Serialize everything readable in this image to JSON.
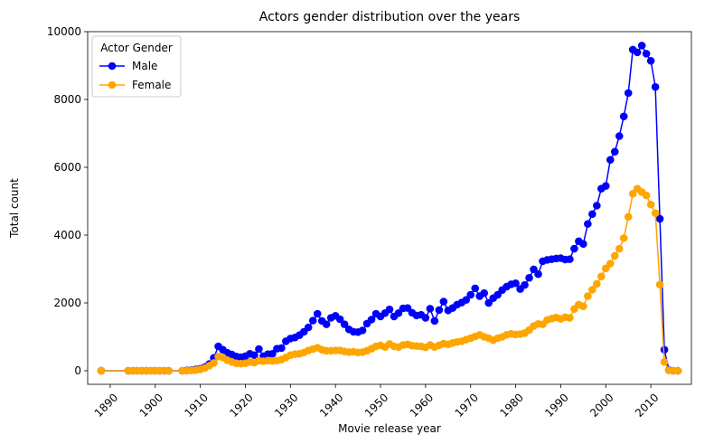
{
  "chart_data": {
    "type": "line",
    "title": "Actors gender distribution over the years",
    "xlabel": "Movie release year",
    "ylabel": "Total count",
    "xlim": [
      1885,
      2019
    ],
    "ylim": [
      -400,
      10000
    ],
    "xticks": [
      1890,
      1900,
      1910,
      1920,
      1930,
      1940,
      1950,
      1960,
      1970,
      1980,
      1990,
      2000,
      2010
    ],
    "xtick_labels": [
      "1890",
      "1900",
      "1910",
      "1920",
      "1930",
      "1940",
      "1950",
      "1960",
      "1970",
      "1980",
      "1990",
      "2000",
      "2010"
    ],
    "yticks": [
      0,
      2000,
      4000,
      6000,
      8000,
      10000
    ],
    "ytick_labels": [
      "0",
      "2000",
      "4000",
      "6000",
      "8000",
      "10000"
    ],
    "grid": false,
    "legend": {
      "title": "Actor Gender",
      "placement": "top-left"
    },
    "series": [
      {
        "name": "Male",
        "color": "#0000ff",
        "points": [
          [
            1888,
            0
          ],
          [
            1894,
            0
          ],
          [
            1895,
            0
          ],
          [
            1896,
            0
          ],
          [
            1897,
            0
          ],
          [
            1898,
            0
          ],
          [
            1899,
            0
          ],
          [
            1900,
            0
          ],
          [
            1901,
            0
          ],
          [
            1902,
            0
          ],
          [
            1903,
            0
          ],
          [
            1906,
            0
          ],
          [
            1907,
            10
          ],
          [
            1908,
            20
          ],
          [
            1909,
            40
          ],
          [
            1910,
            60
          ],
          [
            1911,
            110
          ],
          [
            1912,
            200
          ],
          [
            1913,
            380
          ],
          [
            1914,
            720
          ],
          [
            1915,
            620
          ],
          [
            1916,
            530
          ],
          [
            1917,
            480
          ],
          [
            1918,
            420
          ],
          [
            1919,
            400
          ],
          [
            1920,
            430
          ],
          [
            1921,
            500
          ],
          [
            1922,
            460
          ],
          [
            1923,
            640
          ],
          [
            1924,
            430
          ],
          [
            1925,
            490
          ],
          [
            1926,
            500
          ],
          [
            1927,
            650
          ],
          [
            1928,
            670
          ],
          [
            1929,
            870
          ],
          [
            1930,
            950
          ],
          [
            1931,
            980
          ],
          [
            1932,
            1050
          ],
          [
            1933,
            1150
          ],
          [
            1934,
            1280
          ],
          [
            1935,
            1480
          ],
          [
            1936,
            1680
          ],
          [
            1937,
            1470
          ],
          [
            1938,
            1370
          ],
          [
            1939,
            1560
          ],
          [
            1940,
            1620
          ],
          [
            1941,
            1520
          ],
          [
            1942,
            1370
          ],
          [
            1943,
            1220
          ],
          [
            1944,
            1150
          ],
          [
            1945,
            1140
          ],
          [
            1946,
            1190
          ],
          [
            1947,
            1390
          ],
          [
            1948,
            1510
          ],
          [
            1949,
            1680
          ],
          [
            1950,
            1600
          ],
          [
            1951,
            1700
          ],
          [
            1952,
            1810
          ],
          [
            1953,
            1600
          ],
          [
            1954,
            1700
          ],
          [
            1955,
            1840
          ],
          [
            1956,
            1850
          ],
          [
            1957,
            1710
          ],
          [
            1958,
            1630
          ],
          [
            1959,
            1650
          ],
          [
            1960,
            1560
          ],
          [
            1961,
            1830
          ],
          [
            1962,
            1470
          ],
          [
            1963,
            1790
          ],
          [
            1964,
            2040
          ],
          [
            1965,
            1780
          ],
          [
            1966,
            1850
          ],
          [
            1967,
            1950
          ],
          [
            1968,
            2010
          ],
          [
            1969,
            2090
          ],
          [
            1970,
            2240
          ],
          [
            1971,
            2430
          ],
          [
            1972,
            2200
          ],
          [
            1973,
            2290
          ],
          [
            1974,
            2000
          ],
          [
            1975,
            2140
          ],
          [
            1976,
            2240
          ],
          [
            1977,
            2380
          ],
          [
            1978,
            2480
          ],
          [
            1979,
            2550
          ],
          [
            1980,
            2580
          ],
          [
            1981,
            2410
          ],
          [
            1982,
            2530
          ],
          [
            1983,
            2740
          ],
          [
            1984,
            2990
          ],
          [
            1985,
            2850
          ],
          [
            1986,
            3230
          ],
          [
            1987,
            3270
          ],
          [
            1988,
            3290
          ],
          [
            1989,
            3310
          ],
          [
            1990,
            3320
          ],
          [
            1991,
            3280
          ],
          [
            1992,
            3290
          ],
          [
            1993,
            3600
          ],
          [
            1994,
            3820
          ],
          [
            1995,
            3740
          ],
          [
            1996,
            4330
          ],
          [
            1997,
            4620
          ],
          [
            1998,
            4870
          ],
          [
            1999,
            5370
          ],
          [
            2000,
            5450
          ],
          [
            2001,
            6220
          ],
          [
            2002,
            6460
          ],
          [
            2003,
            6920
          ],
          [
            2004,
            7500
          ],
          [
            2005,
            8190
          ],
          [
            2006,
            9470
          ],
          [
            2007,
            9390
          ],
          [
            2008,
            9590
          ],
          [
            2009,
            9350
          ],
          [
            2010,
            9140
          ],
          [
            2011,
            8370
          ],
          [
            2012,
            4480
          ],
          [
            2013,
            620
          ],
          [
            2014,
            20
          ],
          [
            2015,
            0
          ],
          [
            2016,
            0
          ]
        ]
      },
      {
        "name": "Female",
        "color": "#ffa500",
        "points": [
          [
            1888,
            0
          ],
          [
            1894,
            0
          ],
          [
            1895,
            0
          ],
          [
            1896,
            0
          ],
          [
            1897,
            0
          ],
          [
            1898,
            0
          ],
          [
            1899,
            0
          ],
          [
            1900,
            0
          ],
          [
            1901,
            0
          ],
          [
            1902,
            0
          ],
          [
            1903,
            0
          ],
          [
            1906,
            0
          ],
          [
            1907,
            0
          ],
          [
            1908,
            10
          ],
          [
            1909,
            20
          ],
          [
            1910,
            40
          ],
          [
            1911,
            80
          ],
          [
            1912,
            150
          ],
          [
            1913,
            230
          ],
          [
            1914,
            420
          ],
          [
            1915,
            390
          ],
          [
            1916,
            310
          ],
          [
            1917,
            260
          ],
          [
            1918,
            220
          ],
          [
            1919,
            210
          ],
          [
            1920,
            220
          ],
          [
            1921,
            260
          ],
          [
            1922,
            240
          ],
          [
            1923,
            300
          ],
          [
            1924,
            280
          ],
          [
            1925,
            300
          ],
          [
            1926,
            290
          ],
          [
            1927,
            300
          ],
          [
            1928,
            330
          ],
          [
            1929,
            390
          ],
          [
            1930,
            460
          ],
          [
            1931,
            490
          ],
          [
            1932,
            500
          ],
          [
            1933,
            540
          ],
          [
            1934,
            600
          ],
          [
            1935,
            640
          ],
          [
            1936,
            680
          ],
          [
            1937,
            620
          ],
          [
            1938,
            590
          ],
          [
            1939,
            590
          ],
          [
            1940,
            600
          ],
          [
            1941,
            600
          ],
          [
            1942,
            570
          ],
          [
            1943,
            550
          ],
          [
            1944,
            560
          ],
          [
            1945,
            540
          ],
          [
            1946,
            550
          ],
          [
            1947,
            590
          ],
          [
            1948,
            650
          ],
          [
            1949,
            720
          ],
          [
            1950,
            750
          ],
          [
            1951,
            700
          ],
          [
            1952,
            790
          ],
          [
            1953,
            720
          ],
          [
            1954,
            700
          ],
          [
            1955,
            760
          ],
          [
            1956,
            780
          ],
          [
            1957,
            740
          ],
          [
            1958,
            730
          ],
          [
            1959,
            720
          ],
          [
            1960,
            690
          ],
          [
            1961,
            760
          ],
          [
            1962,
            700
          ],
          [
            1963,
            750
          ],
          [
            1964,
            800
          ],
          [
            1965,
            780
          ],
          [
            1966,
            820
          ],
          [
            1967,
            850
          ],
          [
            1968,
            870
          ],
          [
            1969,
            920
          ],
          [
            1970,
            960
          ],
          [
            1971,
            1010
          ],
          [
            1972,
            1060
          ],
          [
            1973,
            1000
          ],
          [
            1974,
            960
          ],
          [
            1975,
            900
          ],
          [
            1976,
            960
          ],
          [
            1977,
            1000
          ],
          [
            1978,
            1060
          ],
          [
            1979,
            1090
          ],
          [
            1980,
            1070
          ],
          [
            1981,
            1080
          ],
          [
            1982,
            1110
          ],
          [
            1983,
            1200
          ],
          [
            1984,
            1320
          ],
          [
            1985,
            1380
          ],
          [
            1986,
            1370
          ],
          [
            1987,
            1500
          ],
          [
            1988,
            1540
          ],
          [
            1989,
            1570
          ],
          [
            1990,
            1530
          ],
          [
            1991,
            1580
          ],
          [
            1992,
            1560
          ],
          [
            1993,
            1820
          ],
          [
            1994,
            1950
          ],
          [
            1995,
            1900
          ],
          [
            1996,
            2200
          ],
          [
            1997,
            2390
          ],
          [
            1998,
            2560
          ],
          [
            1999,
            2780
          ],
          [
            2000,
            3020
          ],
          [
            2001,
            3160
          ],
          [
            2002,
            3390
          ],
          [
            2003,
            3600
          ],
          [
            2004,
            3910
          ],
          [
            2005,
            4540
          ],
          [
            2006,
            5220
          ],
          [
            2007,
            5370
          ],
          [
            2008,
            5270
          ],
          [
            2009,
            5170
          ],
          [
            2010,
            4900
          ],
          [
            2011,
            4650
          ],
          [
            2012,
            2540
          ],
          [
            2013,
            260
          ],
          [
            2014,
            10
          ],
          [
            2015,
            0
          ],
          [
            2016,
            0
          ]
        ]
      }
    ]
  }
}
